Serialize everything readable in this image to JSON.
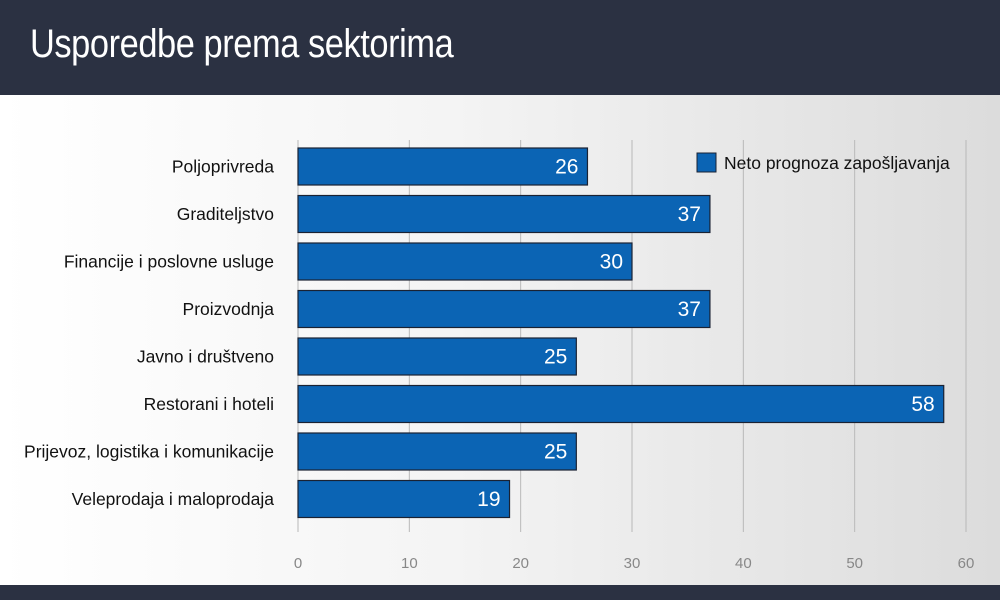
{
  "header": {
    "title": "Usporedbe prema sektorima"
  },
  "colors": {
    "bar": "#0b64b4",
    "bar_border": "#1a2233",
    "grid": "#b9b9b9",
    "header_bg": "#2b3142"
  },
  "chart_data": {
    "type": "bar",
    "orientation": "horizontal",
    "categories": [
      "Poljoprivreda",
      "Graditeljstvo",
      "Financije i poslovne usluge",
      "Proizvodnja",
      "Javno i društveno",
      "Restorani i hoteli",
      "Prijevoz, logistika i komunikacije",
      "Veleprodaja i maloprodaja"
    ],
    "series": [
      {
        "name": "Neto prognoza zapošljavanja",
        "values": [
          26,
          37,
          30,
          37,
          25,
          58,
          25,
          19
        ]
      }
    ],
    "xlim": [
      0,
      60
    ],
    "xticks": [
      0,
      10,
      20,
      30,
      40,
      50,
      60
    ],
    "grid": "vertical",
    "legend": "top-right",
    "data_labels": true
  }
}
